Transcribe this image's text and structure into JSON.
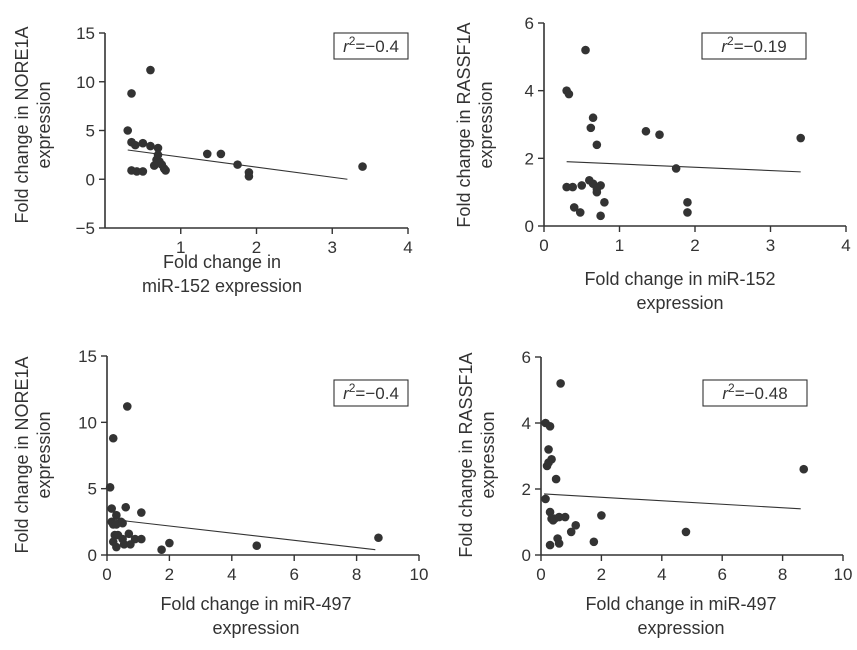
{
  "chart_data": [
    {
      "type": "scatter",
      "panel": "top-left",
      "xlabel": [
        "Fold change in",
        "miR-152 expression"
      ],
      "ylabel": [
        "Fold change in NORE1A",
        "expression"
      ],
      "xlim": [
        0,
        4
      ],
      "ylim": [
        -5,
        15
      ],
      "xticks": [
        1,
        2,
        3,
        4
      ],
      "yticks": [
        -5,
        0,
        5,
        10,
        15
      ],
      "annotation": {
        "var": "r",
        "sup": "2",
        "text": "=−0.4"
      },
      "fit_line": {
        "x": [
          0.3,
          3.2
        ],
        "y": [
          3.0,
          0.0
        ]
      },
      "x": [
        0.35,
        0.6,
        0.3,
        0.35,
        0.5,
        0.4,
        0.6,
        0.7,
        0.68,
        0.72,
        0.75,
        0.78,
        0.8,
        0.65,
        0.7,
        0.35,
        0.42,
        0.5,
        1.35,
        1.53,
        1.75,
        1.9,
        1.9,
        3.4
      ],
      "y": [
        8.8,
        11.2,
        5.0,
        3.8,
        3.7,
        3.5,
        3.4,
        3.2,
        2.0,
        1.8,
        1.5,
        1.1,
        0.9,
        1.4,
        2.5,
        0.9,
        0.8,
        0.8,
        2.6,
        2.6,
        1.5,
        0.7,
        0.3,
        1.3
      ]
    },
    {
      "type": "scatter",
      "panel": "top-right",
      "xlabel": [
        "Fold change in miR-152",
        "expression"
      ],
      "ylabel": [
        "Fold change in RASSF1A",
        "expression"
      ],
      "xlim": [
        0,
        4
      ],
      "ylim": [
        0,
        6
      ],
      "xticks": [
        0,
        1,
        2,
        3,
        4
      ],
      "yticks": [
        0,
        2,
        4,
        6
      ],
      "annotation": {
        "var": "r",
        "sup": "2",
        "text": "=−0.19"
      },
      "fit_line": {
        "x": [
          0.3,
          3.4
        ],
        "y": [
          1.9,
          1.6
        ]
      },
      "x": [
        0.55,
        0.3,
        0.33,
        0.65,
        0.62,
        0.7,
        0.3,
        0.38,
        0.5,
        0.6,
        0.65,
        0.7,
        0.75,
        0.8,
        0.4,
        0.48,
        0.75,
        1.35,
        1.53,
        1.75,
        1.9,
        1.9,
        3.4,
        0.7
      ],
      "y": [
        5.2,
        4.0,
        3.9,
        3.2,
        2.9,
        2.4,
        1.15,
        1.15,
        1.2,
        1.35,
        1.25,
        1.0,
        1.2,
        0.7,
        0.55,
        0.4,
        0.3,
        2.8,
        2.7,
        1.7,
        0.7,
        0.4,
        2.6,
        1.1
      ]
    },
    {
      "type": "scatter",
      "panel": "bottom-left",
      "xlabel": [
        "Fold change in miR-497",
        "expression"
      ],
      "ylabel": [
        "Fold change in NORE1A",
        "expression"
      ],
      "xlim": [
        0,
        10
      ],
      "ylim": [
        0,
        15
      ],
      "xticks": [
        0,
        2,
        4,
        6,
        8,
        10
      ],
      "yticks": [
        0,
        5,
        10,
        15
      ],
      "annotation": {
        "var": "r",
        "sup": "2",
        "text": "=−0.4"
      },
      "fit_line": {
        "x": [
          0.1,
          8.6
        ],
        "y": [
          2.7,
          0.4
        ]
      },
      "x": [
        0.2,
        0.65,
        0.1,
        0.15,
        0.6,
        0.3,
        0.45,
        1.1,
        0.15,
        0.2,
        0.3,
        0.5,
        0.25,
        0.35,
        0.5,
        0.7,
        0.9,
        0.2,
        0.3,
        0.55,
        0.75,
        1.1,
        1.75,
        2.0,
        4.8,
        8.7
      ],
      "y": [
        8.8,
        11.2,
        5.1,
        3.5,
        3.6,
        3.0,
        2.5,
        3.2,
        2.5,
        2.3,
        2.3,
        2.4,
        1.5,
        1.5,
        1.2,
        1.6,
        1.2,
        1.0,
        0.6,
        0.8,
        0.8,
        1.2,
        0.4,
        0.9,
        0.7,
        1.3
      ]
    },
    {
      "type": "scatter",
      "panel": "bottom-right",
      "xlabel": [
        "Fold change in miR-497",
        "expression"
      ],
      "ylabel": [
        "Fold change in RASSF1A",
        "expression"
      ],
      "xlim": [
        0,
        10
      ],
      "ylim": [
        0,
        6
      ],
      "xticks": [
        0,
        2,
        4,
        6,
        8,
        10
      ],
      "yticks": [
        0,
        2,
        4,
        6
      ],
      "annotation": {
        "var": "r",
        "sup": "2",
        "text": "=−0.48"
      },
      "fit_line": {
        "x": [
          0.1,
          8.6
        ],
        "y": [
          1.85,
          1.4
        ]
      },
      "x": [
        0.65,
        0.15,
        0.3,
        0.25,
        0.35,
        0.2,
        0.25,
        0.5,
        0.15,
        0.3,
        0.35,
        0.4,
        0.45,
        0.6,
        0.8,
        1.15,
        1.0,
        2.0,
        0.3,
        0.6,
        1.75,
        4.8,
        8.7,
        0.55
      ],
      "y": [
        5.2,
        4.0,
        3.9,
        3.2,
        2.9,
        2.7,
        2.8,
        2.3,
        1.7,
        1.3,
        1.1,
        1.05,
        1.1,
        1.15,
        1.15,
        0.9,
        0.7,
        1.2,
        0.3,
        0.35,
        0.4,
        0.7,
        2.6,
        0.5
      ]
    }
  ]
}
